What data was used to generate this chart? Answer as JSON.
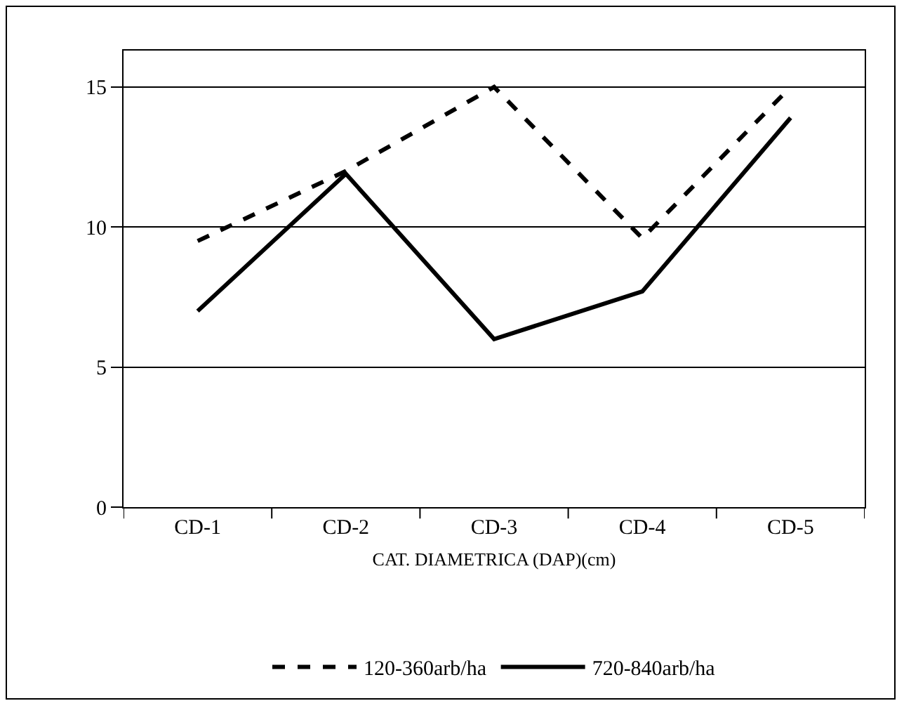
{
  "chart_data": {
    "type": "line",
    "xlabel": "CAT. DIAMETRICA (DAP)(cm)",
    "categories": [
      "CD-1",
      "CD-2",
      "CD-3",
      "CD-4",
      "CD-5"
    ],
    "series": [
      {
        "name": "120-360arb/ha",
        "color": "#000000",
        "line_style": "dashed",
        "values": [
          9.5,
          12.0,
          15.0,
          9.6,
          15.0
        ]
      },
      {
        "name": "720-840arb/ha",
        "color": "#000000",
        "line_style": "solid",
        "values": [
          7.0,
          11.9,
          6.0,
          7.7,
          13.9
        ]
      }
    ],
    "ylim": [
      0,
      16.3
    ],
    "yticks": [
      0,
      5,
      10,
      15
    ],
    "grid": "y",
    "legend": "bottom",
    "marker": "none"
  }
}
